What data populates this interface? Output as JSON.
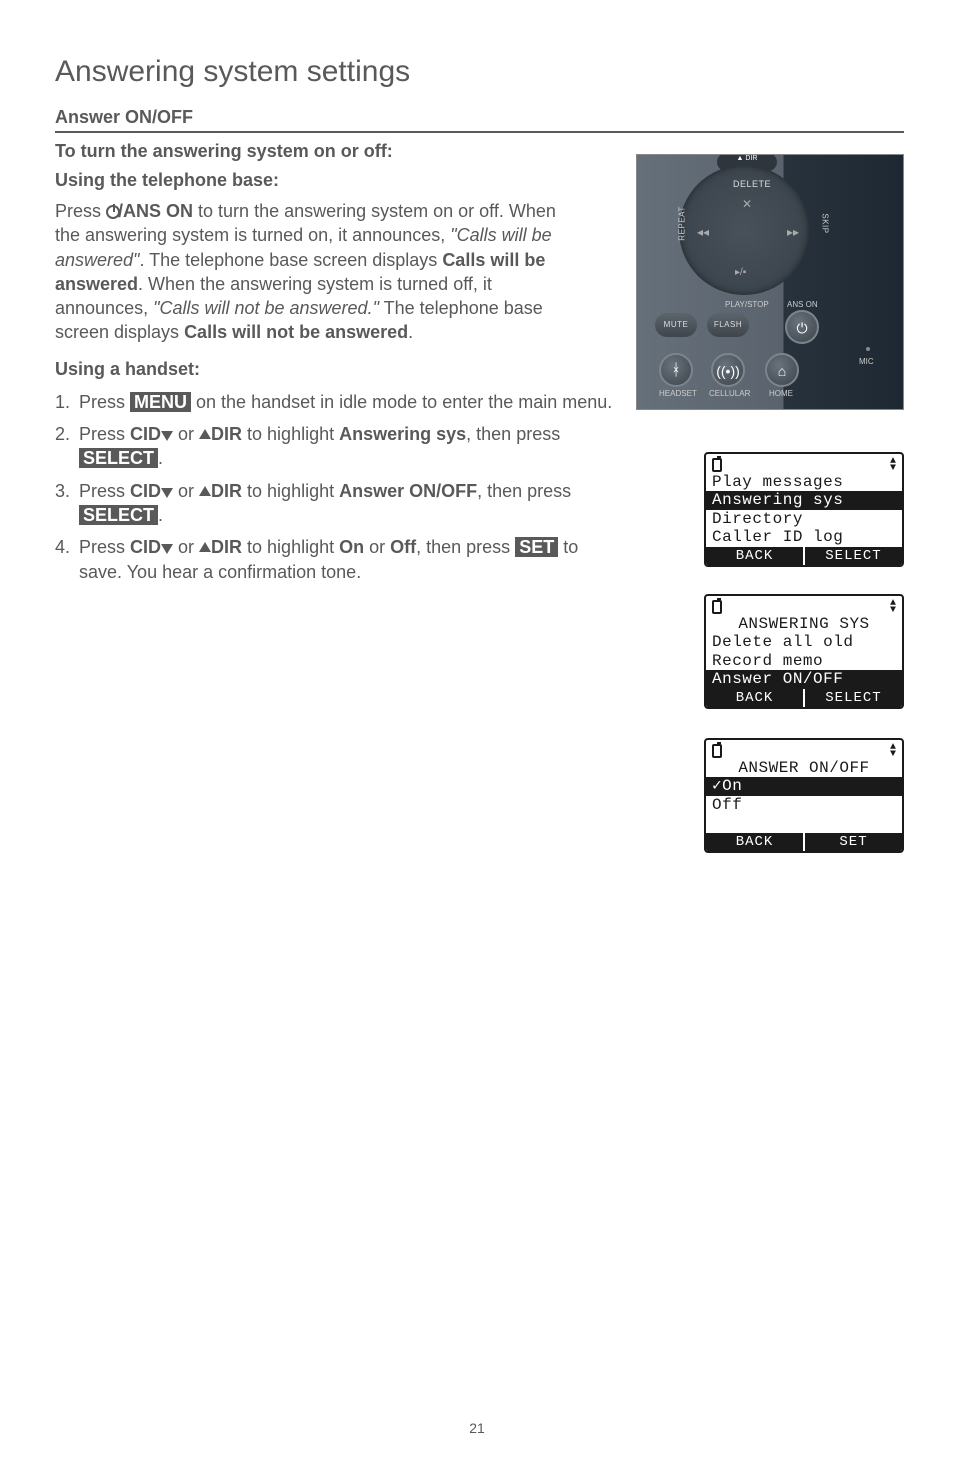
{
  "heading": "Answering system settings",
  "subheading": "Answer ON/OFF",
  "line1": "To turn the answering system on or off:",
  "line2": "Using the telephone base:",
  "para_pre": "Press ",
  "para_btn": "/ANS ON",
  "para_rest1": " to turn the answering system on or off. When the answering system is turned on, it announces, ",
  "para_it1": "\"Calls will be answered\"",
  "para_rest2": ". The telephone base screen displays ",
  "para_b1": "Calls will be answered",
  "para_rest3": ". When the answering system is turned off, it announces, ",
  "para_it2": "\"Calls will not be answered.\"",
  "para_rest4": " The telephone base screen displays ",
  "para_b2": "Calls will not be answered",
  "para_rest5": ".",
  "line3": "Using a handset:",
  "li1_a": "Press ",
  "li1_menu": "MENU",
  "li1_b": " on the handset in idle mode to enter the main menu.",
  "li2_a": "Press ",
  "cid": "CID",
  "li_or": " or ",
  "dir": "DIR",
  "li2_b": " to highlight ",
  "li2_t": "Answering sys",
  "li_then": ", then press ",
  "select": "SELECT",
  "period": ".",
  "li3_t": "Answer ON/OFF",
  "li4_b": " to highlight ",
  "li4_on": "On",
  "li4_or2": " or ",
  "li4_off": "Off",
  "li4_then": ", then press ",
  "set": "SET",
  "li4_c": " to save. You hear a confirmation tone.",
  "base": {
    "dir": "▲ DIR",
    "delete": "DELETE",
    "repeat": "REPEAT",
    "skip": "SKIP",
    "playstop": "PLAY/STOP",
    "anson": "ANS ON",
    "mute": "MUTE",
    "flash": "FLASH",
    "headset": "HEADSET",
    "cellular": "CELLULAR",
    "home": "HOME",
    "mic": "MIC"
  },
  "lcd1": {
    "r1": "Play messages",
    "r2": "Answering sys",
    "r3": "Directory",
    "r4": "Caller ID log",
    "b1": "BACK",
    "b2": "SELECT"
  },
  "lcd2": {
    "title": "ANSWERING SYS",
    "r1": "Delete all old",
    "r2": "Record memo",
    "r3": "Answer ON/OFF",
    "b1": "BACK",
    "b2": "SELECT"
  },
  "lcd3": {
    "title": "ANSWER ON/OFF",
    "r1": "✓On",
    "r2": " Off",
    "b1": "BACK",
    "b2": "SET"
  },
  "pagenum": "21"
}
